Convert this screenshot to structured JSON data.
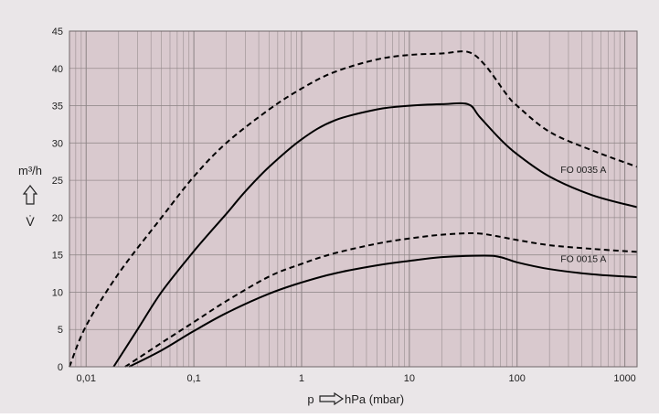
{
  "chart_data": {
    "type": "line",
    "x_scale": "log",
    "xlim": [
      0.007,
      1300
    ],
    "ylim": [
      0,
      45
    ],
    "grid": true,
    "x_ticks": [
      {
        "value": 0.01,
        "label": "0,01"
      },
      {
        "value": 0.1,
        "label": "0,1"
      },
      {
        "value": 1,
        "label": "1"
      },
      {
        "value": 10,
        "label": "10"
      },
      {
        "value": 100,
        "label": "100"
      },
      {
        "value": 1000,
        "label": "1000"
      }
    ],
    "y_ticks": [
      0,
      5,
      10,
      15,
      20,
      25,
      30,
      35,
      40,
      45
    ],
    "xlabel": {
      "prefix": "p",
      "unit": "hPa (mbar)"
    },
    "ylabel": {
      "unit": "m³/h",
      "symbol": "V̇"
    },
    "colors": {
      "plot_bg": "#d9c9ce",
      "page_bg": "#eae6e8",
      "grid": "#8f8688",
      "line": "#000000"
    },
    "series": [
      {
        "name": "FO 0035 A",
        "style": "solid",
        "points": [
          [
            0.018,
            0
          ],
          [
            0.03,
            5
          ],
          [
            0.05,
            10
          ],
          [
            0.1,
            15.5
          ],
          [
            0.2,
            20.5
          ],
          [
            0.3,
            23.5
          ],
          [
            0.5,
            26.8
          ],
          [
            1,
            30.5
          ],
          [
            2,
            33
          ],
          [
            5,
            34.5
          ],
          [
            10,
            35
          ],
          [
            20,
            35.2
          ],
          [
            35,
            35.2
          ],
          [
            45,
            33.5
          ],
          [
            70,
            30.5
          ],
          [
            100,
            28.5
          ],
          [
            200,
            25.5
          ],
          [
            500,
            23
          ],
          [
            1300,
            21.4
          ]
        ]
      },
      {
        "name": "FO 0035 A (dashed)",
        "style": "dashed",
        "points": [
          [
            0.007,
            0
          ],
          [
            0.01,
            5.5
          ],
          [
            0.02,
            12.5
          ],
          [
            0.05,
            20
          ],
          [
            0.1,
            25.5
          ],
          [
            0.2,
            30
          ],
          [
            0.5,
            34.5
          ],
          [
            1,
            37.3
          ],
          [
            2,
            39.5
          ],
          [
            5,
            41.2
          ],
          [
            10,
            41.8
          ],
          [
            20,
            42
          ],
          [
            35,
            42.2
          ],
          [
            50,
            40.5
          ],
          [
            80,
            36.5
          ],
          [
            100,
            35
          ],
          [
            200,
            31.5
          ],
          [
            500,
            29
          ],
          [
            1300,
            26.8
          ]
        ]
      },
      {
        "name": "FO 0015 A",
        "style": "solid",
        "points": [
          [
            0.025,
            0
          ],
          [
            0.05,
            2.2
          ],
          [
            0.1,
            4.8
          ],
          [
            0.2,
            7.2
          ],
          [
            0.5,
            9.8
          ],
          [
            1,
            11.3
          ],
          [
            2,
            12.5
          ],
          [
            5,
            13.6
          ],
          [
            10,
            14.2
          ],
          [
            20,
            14.7
          ],
          [
            50,
            14.9
          ],
          [
            70,
            14.7
          ],
          [
            100,
            14
          ],
          [
            200,
            13.1
          ],
          [
            500,
            12.4
          ],
          [
            1300,
            12
          ]
        ]
      },
      {
        "name": "FO 0015 A (dashed)",
        "style": "dashed",
        "points": [
          [
            0.023,
            0
          ],
          [
            0.05,
            3.2
          ],
          [
            0.1,
            6
          ],
          [
            0.2,
            8.8
          ],
          [
            0.5,
            12.1
          ],
          [
            1,
            13.8
          ],
          [
            2,
            15.2
          ],
          [
            5,
            16.5
          ],
          [
            10,
            17.2
          ],
          [
            20,
            17.7
          ],
          [
            40,
            17.9
          ],
          [
            60,
            17.6
          ],
          [
            100,
            17
          ],
          [
            200,
            16.3
          ],
          [
            500,
            15.8
          ],
          [
            1300,
            15.4
          ]
        ]
      }
    ],
    "annotations": [
      {
        "text": "FO 0035 A",
        "x": 200,
        "y": 26.5
      },
      {
        "text": "FO 0015 A",
        "x": 200,
        "y": 14.5
      }
    ]
  }
}
